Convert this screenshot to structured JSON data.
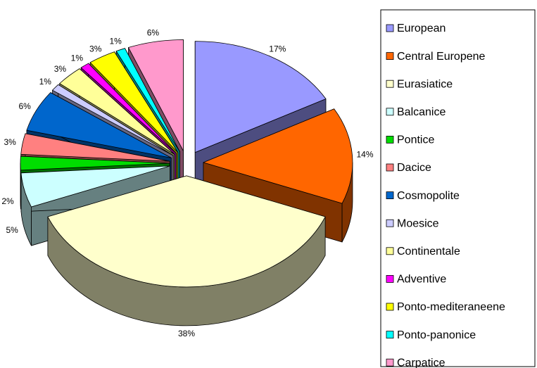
{
  "chart_data": {
    "type": "pie3d",
    "categories": [
      "European",
      "Central Europene",
      "Eurasiatice",
      "Balcanice",
      "Pontice",
      "Dacice",
      "Cosmopolite",
      "Moesice",
      "Continentale",
      "Adventive",
      "Ponto-mediteraneene",
      "Ponto-panonice",
      "Carpatice"
    ],
    "values": [
      17,
      14,
      38,
      5,
      2,
      3,
      6,
      1,
      3,
      1,
      3,
      1,
      6
    ],
    "value_labels": [
      "17%",
      "14%",
      "38%",
      "5%",
      "2%",
      "3%",
      "6%",
      "1%",
      "3%",
      "1%",
      "3%",
      "1%",
      "6%"
    ],
    "colors": [
      "#9999ff",
      "#ff6600",
      "#ffffcc",
      "#ccffff",
      "#00dd00",
      "#ff8080",
      "#0066cc",
      "#ccccff",
      "#ffff99",
      "#ff00ff",
      "#ffff00",
      "#00ffff",
      "#ff99cc"
    ],
    "legend": "right"
  }
}
